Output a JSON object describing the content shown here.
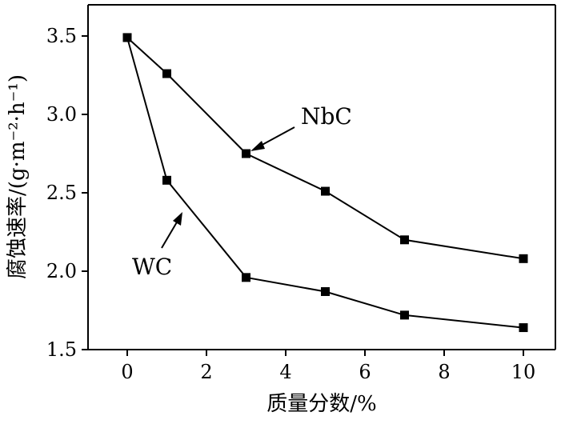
{
  "chart_data": {
    "type": "line",
    "xlabel": "质量分数/%",
    "ylabel": "腐蚀速率/(g·m⁻²·h⁻¹)",
    "xlim": [
      -1,
      11
    ],
    "ylim": [
      1.5,
      3.7
    ],
    "x_ticks": [
      0,
      2,
      4,
      6,
      8,
      10
    ],
    "y_ticks": [
      1.5,
      2.0,
      2.5,
      3.0,
      3.5
    ],
    "x_tick_labels": [
      "0",
      "2",
      "4",
      "6",
      "8",
      "10"
    ],
    "y_tick_labels": [
      "1.5",
      "2.0",
      "2.5",
      "3.0",
      "3.5"
    ],
    "grid": false,
    "marker": "square",
    "series": [
      {
        "name": "NbC",
        "x": [
          0,
          1,
          3,
          5,
          7,
          10
        ],
        "y": [
          3.49,
          3.26,
          2.75,
          2.51,
          2.2,
          2.08
        ]
      },
      {
        "name": "WC",
        "x": [
          0,
          1,
          3,
          5,
          7,
          10
        ],
        "y": [
          3.49,
          2.58,
          1.96,
          1.87,
          1.72,
          1.64
        ]
      }
    ],
    "annotations": [
      {
        "text": "NbC",
        "points_to_series": "NbC",
        "points_to_x": 3
      },
      {
        "text": "WC",
        "points_to_series": "WC",
        "points_to_x": 1
      }
    ]
  }
}
